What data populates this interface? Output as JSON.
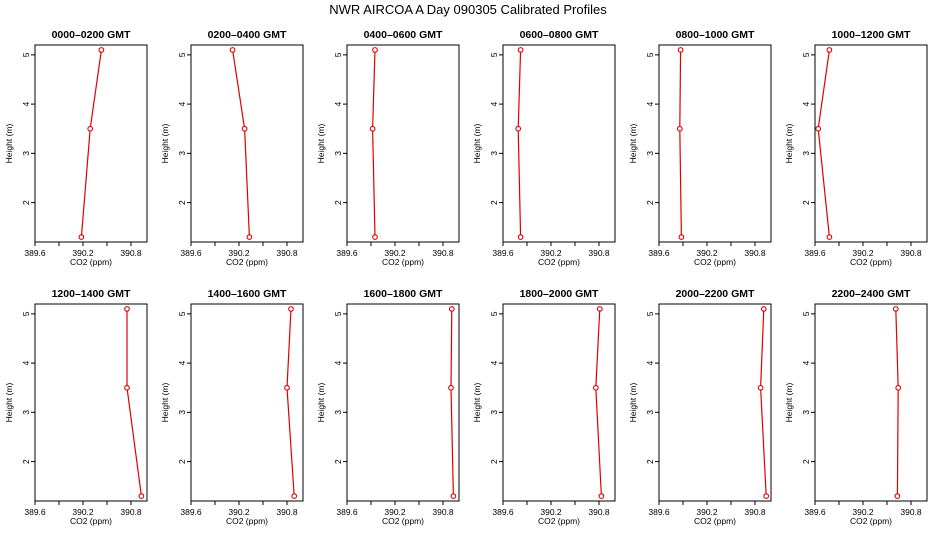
{
  "figure": {
    "title": "NWR AIRCOA A  Day 090305  Calibrated Profiles"
  },
  "chart_data": [
    {
      "type": "line",
      "title": "0000–0200 GMT",
      "xlabel": "CO2 (ppm)",
      "ylabel": "Height (m)",
      "xlim": [
        389.6,
        391.0
      ],
      "ylim": [
        1.2,
        5.2
      ],
      "xticks": [
        389.6,
        390.2,
        390.8
      ],
      "xtick_labels": [
        "389.6",
        "390.2",
        "390.8"
      ],
      "yticks": [
        2,
        3,
        4,
        5
      ],
      "ytick_labels": [
        "2",
        "3",
        "4",
        "5"
      ],
      "color": "#e00000",
      "points": [
        {
          "x": 390.18,
          "y": 1.3
        },
        {
          "x": 390.29,
          "y": 3.5
        },
        {
          "x": 390.43,
          "y": 5.1
        }
      ]
    },
    {
      "type": "line",
      "title": "0200–0400 GMT",
      "xlabel": "CO2 (ppm)",
      "ylabel": "Height (m)",
      "xlim": [
        389.6,
        391.0
      ],
      "ylim": [
        1.2,
        5.2
      ],
      "xticks": [
        389.6,
        390.2,
        390.8
      ],
      "xtick_labels": [
        "389.6",
        "390.2",
        "390.8"
      ],
      "yticks": [
        2,
        3,
        4,
        5
      ],
      "ytick_labels": [
        "2",
        "3",
        "4",
        "5"
      ],
      "color": "#e00000",
      "points": [
        {
          "x": 390.33,
          "y": 1.3
        },
        {
          "x": 390.27,
          "y": 3.5
        },
        {
          "x": 390.12,
          "y": 5.1
        }
      ]
    },
    {
      "type": "line",
      "title": "0400–0600 GMT",
      "xlabel": "CO2 (ppm)",
      "ylabel": "Height (m)",
      "xlim": [
        389.6,
        391.0
      ],
      "ylim": [
        1.2,
        5.2
      ],
      "xticks": [
        389.6,
        390.2,
        390.8
      ],
      "xtick_labels": [
        "389.6",
        "390.2",
        "390.8"
      ],
      "yticks": [
        2,
        3,
        4,
        5
      ],
      "ytick_labels": [
        "2",
        "3",
        "4",
        "5"
      ],
      "color": "#e00000",
      "points": [
        {
          "x": 389.95,
          "y": 1.3
        },
        {
          "x": 389.92,
          "y": 3.5
        },
        {
          "x": 389.95,
          "y": 5.1
        }
      ]
    },
    {
      "type": "line",
      "title": "0600–0800 GMT",
      "xlabel": "CO2 (ppm)",
      "ylabel": "Height (m)",
      "xlim": [
        389.6,
        391.0
      ],
      "ylim": [
        1.2,
        5.2
      ],
      "xticks": [
        389.6,
        390.2,
        390.8
      ],
      "xtick_labels": [
        "389.6",
        "390.2",
        "390.8"
      ],
      "yticks": [
        2,
        3,
        4,
        5
      ],
      "ytick_labels": [
        "2",
        "3",
        "4",
        "5"
      ],
      "color": "#e00000",
      "points": [
        {
          "x": 389.82,
          "y": 1.3
        },
        {
          "x": 389.79,
          "y": 3.5
        },
        {
          "x": 389.82,
          "y": 5.1
        }
      ]
    },
    {
      "type": "line",
      "title": "0800–1000 GMT",
      "xlabel": "CO2 (ppm)",
      "ylabel": "Height (m)",
      "xlim": [
        389.6,
        391.0
      ],
      "ylim": [
        1.2,
        5.2
      ],
      "xticks": [
        389.6,
        390.2,
        390.8
      ],
      "xtick_labels": [
        "389.6",
        "390.2",
        "390.8"
      ],
      "yticks": [
        2,
        3,
        4,
        5
      ],
      "ytick_labels": [
        "2",
        "3",
        "4",
        "5"
      ],
      "color": "#e00000",
      "points": [
        {
          "x": 389.88,
          "y": 1.3
        },
        {
          "x": 389.86,
          "y": 3.5
        },
        {
          "x": 389.87,
          "y": 5.1
        }
      ]
    },
    {
      "type": "line",
      "title": "1000–1200 GMT",
      "xlabel": "CO2 (ppm)",
      "ylabel": "Height (m)",
      "xlim": [
        389.6,
        391.0
      ],
      "ylim": [
        1.2,
        5.2
      ],
      "xticks": [
        389.6,
        390.2,
        390.8
      ],
      "xtick_labels": [
        "389.6",
        "390.2",
        "390.8"
      ],
      "yticks": [
        2,
        3,
        4,
        5
      ],
      "ytick_labels": [
        "2",
        "3",
        "4",
        "5"
      ],
      "color": "#e00000",
      "points": [
        {
          "x": 389.78,
          "y": 1.3
        },
        {
          "x": 389.64,
          "y": 3.5
        },
        {
          "x": 389.78,
          "y": 5.1
        }
      ]
    },
    {
      "type": "line",
      "title": "1200–1400 GMT",
      "xlabel": "CO2 (ppm)",
      "ylabel": "Height (m)",
      "xlim": [
        389.6,
        391.0
      ],
      "ylim": [
        1.2,
        5.2
      ],
      "xticks": [
        389.6,
        390.2,
        390.8
      ],
      "xtick_labels": [
        "389.6",
        "390.2",
        "390.8"
      ],
      "yticks": [
        2,
        3,
        4,
        5
      ],
      "ytick_labels": [
        "2",
        "3",
        "4",
        "5"
      ],
      "color": "#e00000",
      "points": [
        {
          "x": 390.93,
          "y": 1.3
        },
        {
          "x": 390.75,
          "y": 3.5
        },
        {
          "x": 390.75,
          "y": 5.1
        }
      ]
    },
    {
      "type": "line",
      "title": "1400–1600 GMT",
      "xlabel": "CO2 (ppm)",
      "ylabel": "Height (m)",
      "xlim": [
        389.6,
        391.0
      ],
      "ylim": [
        1.2,
        5.2
      ],
      "xticks": [
        389.6,
        390.2,
        390.8
      ],
      "xtick_labels": [
        "389.6",
        "390.2",
        "390.8"
      ],
      "yticks": [
        2,
        3,
        4,
        5
      ],
      "ytick_labels": [
        "2",
        "3",
        "4",
        "5"
      ],
      "color": "#e00000",
      "points": [
        {
          "x": 390.89,
          "y": 1.3
        },
        {
          "x": 390.8,
          "y": 3.5
        },
        {
          "x": 390.85,
          "y": 5.1
        }
      ]
    },
    {
      "type": "line",
      "title": "1600–1800 GMT",
      "xlabel": "CO2 (ppm)",
      "ylabel": "Height (m)",
      "xlim": [
        389.6,
        391.0
      ],
      "ylim": [
        1.2,
        5.2
      ],
      "xticks": [
        389.6,
        390.2,
        390.8
      ],
      "xtick_labels": [
        "389.6",
        "390.2",
        "390.8"
      ],
      "yticks": [
        2,
        3,
        4,
        5
      ],
      "ytick_labels": [
        "2",
        "3",
        "4",
        "5"
      ],
      "color": "#e00000",
      "points": [
        {
          "x": 390.93,
          "y": 1.3
        },
        {
          "x": 390.9,
          "y": 3.5
        },
        {
          "x": 390.91,
          "y": 5.1
        }
      ]
    },
    {
      "type": "line",
      "title": "1800–2000 GMT",
      "xlabel": "CO2 (ppm)",
      "ylabel": "Height (m)",
      "xlim": [
        389.6,
        391.0
      ],
      "ylim": [
        1.2,
        5.2
      ],
      "xticks": [
        389.6,
        390.2,
        390.8
      ],
      "xtick_labels": [
        "389.6",
        "390.2",
        "390.8"
      ],
      "yticks": [
        2,
        3,
        4,
        5
      ],
      "ytick_labels": [
        "2",
        "3",
        "4",
        "5"
      ],
      "color": "#e00000",
      "points": [
        {
          "x": 390.83,
          "y": 1.3
        },
        {
          "x": 390.76,
          "y": 3.5
        },
        {
          "x": 390.81,
          "y": 5.1
        }
      ]
    },
    {
      "type": "line",
      "title": "2000–2200 GMT",
      "xlabel": "CO2 (ppm)",
      "ylabel": "Height (m)",
      "xlim": [
        389.6,
        391.0
      ],
      "ylim": [
        1.2,
        5.2
      ],
      "xticks": [
        389.6,
        390.2,
        390.8
      ],
      "xtick_labels": [
        "389.6",
        "390.2",
        "390.8"
      ],
      "yticks": [
        2,
        3,
        4,
        5
      ],
      "ytick_labels": [
        "2",
        "3",
        "4",
        "5"
      ],
      "color": "#e00000",
      "points": [
        {
          "x": 390.94,
          "y": 1.3
        },
        {
          "x": 390.87,
          "y": 3.5
        },
        {
          "x": 390.91,
          "y": 5.1
        }
      ]
    },
    {
      "type": "line",
      "title": "2200–2400 GMT",
      "xlabel": "CO2 (ppm)",
      "ylabel": "Height (m)",
      "xlim": [
        389.6,
        391.0
      ],
      "ylim": [
        1.2,
        5.2
      ],
      "xticks": [
        389.6,
        390.2,
        390.8
      ],
      "xtick_labels": [
        "389.6",
        "390.2",
        "390.8"
      ],
      "yticks": [
        2,
        3,
        4,
        5
      ],
      "ytick_labels": [
        "2",
        "3",
        "4",
        "5"
      ],
      "color": "#e00000",
      "points": [
        {
          "x": 390.63,
          "y": 1.3
        },
        {
          "x": 390.64,
          "y": 3.5
        },
        {
          "x": 390.61,
          "y": 5.1
        }
      ]
    }
  ]
}
